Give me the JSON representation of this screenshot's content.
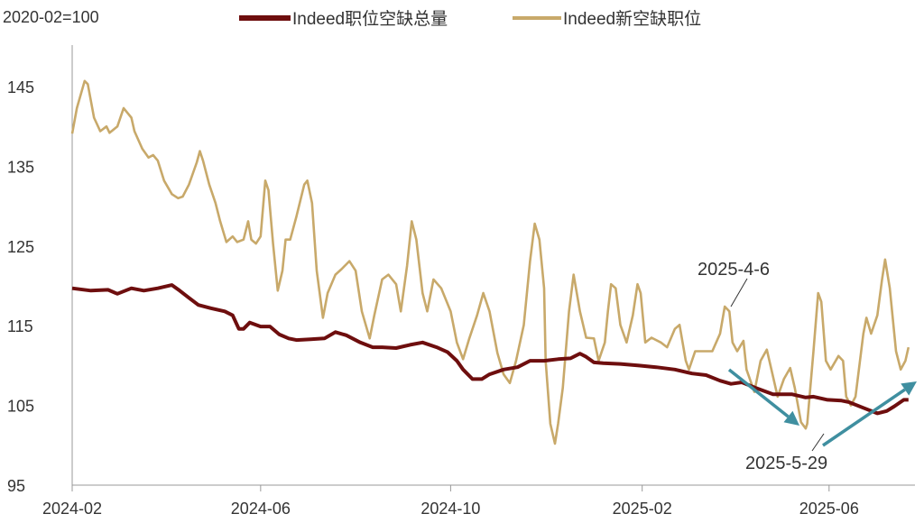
{
  "chart_data": {
    "type": "line",
    "unit_label": "2020-02=100",
    "ylim": [
      95,
      150
    ],
    "yticks": [
      95,
      105,
      115,
      125,
      135,
      145
    ],
    "xlim": [
      "2024-02-01",
      "2025-07-25"
    ],
    "xticks": [
      "2024-02",
      "2024-06",
      "2024-10",
      "2025-02",
      "2025-06"
    ],
    "grid": false,
    "legend": "top",
    "series": [
      {
        "name": "Indeed职位空缺总量",
        "color": "#6e0e0e",
        "points": [
          [
            "2024-02-01",
            119.7
          ],
          [
            "2024-02-13",
            119.4
          ],
          [
            "2024-02-24",
            119.5
          ],
          [
            "2024-03-01",
            119.0
          ],
          [
            "2024-03-10",
            119.7
          ],
          [
            "2024-03-18",
            119.4
          ],
          [
            "2024-03-27",
            119.7
          ],
          [
            "2024-04-05",
            120.1
          ],
          [
            "2024-04-10",
            119.4
          ],
          [
            "2024-04-16",
            118.5
          ],
          [
            "2024-04-22",
            117.6
          ],
          [
            "2024-04-30",
            117.2
          ],
          [
            "2024-05-09",
            116.8
          ],
          [
            "2024-05-14",
            116.3
          ],
          [
            "2024-05-18",
            114.6
          ],
          [
            "2024-05-21",
            114.6
          ],
          [
            "2024-05-25",
            115.4
          ],
          [
            "2024-06-01",
            114.9
          ],
          [
            "2024-06-07",
            114.9
          ],
          [
            "2024-06-13",
            113.9
          ],
          [
            "2024-06-19",
            113.4
          ],
          [
            "2024-06-24",
            113.2
          ],
          [
            "2024-07-03",
            113.3
          ],
          [
            "2024-07-12",
            113.4
          ],
          [
            "2024-07-19",
            114.2
          ],
          [
            "2024-07-26",
            113.8
          ],
          [
            "2024-08-04",
            112.9
          ],
          [
            "2024-08-12",
            112.3
          ],
          [
            "2024-08-18",
            112.3
          ],
          [
            "2024-08-27",
            112.2
          ],
          [
            "2024-09-05",
            112.6
          ],
          [
            "2024-09-13",
            112.9
          ],
          [
            "2024-09-22",
            112.3
          ],
          [
            "2024-09-29",
            111.7
          ],
          [
            "2024-10-05",
            110.6
          ],
          [
            "2024-10-09",
            109.5
          ],
          [
            "2024-10-15",
            108.3
          ],
          [
            "2024-10-21",
            108.3
          ],
          [
            "2024-10-26",
            108.9
          ],
          [
            "2024-11-04",
            109.5
          ],
          [
            "2024-11-13",
            109.8
          ],
          [
            "2024-11-21",
            110.6
          ],
          [
            "2024-11-30",
            110.6
          ],
          [
            "2024-12-09",
            110.8
          ],
          [
            "2024-12-17",
            110.9
          ],
          [
            "2024-12-23",
            111.5
          ],
          [
            "2024-12-27",
            111.1
          ],
          [
            "2025-01-01",
            110.4
          ],
          [
            "2025-01-07",
            110.3
          ],
          [
            "2025-01-18",
            110.2
          ],
          [
            "2025-01-30",
            110.0
          ],
          [
            "2025-02-10",
            109.8
          ],
          [
            "2025-02-22",
            109.5
          ],
          [
            "2025-03-05",
            109.0
          ],
          [
            "2025-03-14",
            108.8
          ],
          [
            "2025-03-23",
            108.1
          ],
          [
            "2025-03-30",
            107.7
          ],
          [
            "2025-04-06",
            107.9
          ],
          [
            "2025-04-15",
            107.2
          ],
          [
            "2025-04-26",
            106.4
          ],
          [
            "2025-05-08",
            106.4
          ],
          [
            "2025-05-17",
            106.0
          ],
          [
            "2025-05-22",
            106.1
          ],
          [
            "2025-05-31",
            105.7
          ],
          [
            "2025-06-09",
            105.6
          ],
          [
            "2025-06-14",
            105.4
          ],
          [
            "2025-06-23",
            104.7
          ],
          [
            "2025-07-02",
            104.0
          ],
          [
            "2025-07-08",
            104.3
          ],
          [
            "2025-07-13",
            104.9
          ],
          [
            "2025-07-19",
            105.7
          ],
          [
            "2025-07-22",
            105.7
          ]
        ]
      },
      {
        "name": "Indeed新空缺职位",
        "color": "#c8a96a",
        "points": [
          [
            "2024-02-01",
            139.1
          ],
          [
            "2024-02-04",
            142.3
          ],
          [
            "2024-02-09",
            145.7
          ],
          [
            "2024-02-11",
            145.3
          ],
          [
            "2024-02-15",
            141.1
          ],
          [
            "2024-02-19",
            139.4
          ],
          [
            "2024-02-23",
            140.0
          ],
          [
            "2024-02-25",
            139.2
          ],
          [
            "2024-03-01",
            140.0
          ],
          [
            "2024-03-05",
            142.3
          ],
          [
            "2024-03-10",
            141.1
          ],
          [
            "2024-03-12",
            139.4
          ],
          [
            "2024-03-17",
            137.2
          ],
          [
            "2024-03-21",
            136.1
          ],
          [
            "2024-03-24",
            136.4
          ],
          [
            "2024-03-27",
            135.7
          ],
          [
            "2024-03-31",
            133.2
          ],
          [
            "2024-04-05",
            131.5
          ],
          [
            "2024-04-09",
            131.0
          ],
          [
            "2024-04-12",
            131.2
          ],
          [
            "2024-04-16",
            132.7
          ],
          [
            "2024-04-21",
            135.5
          ],
          [
            "2024-04-23",
            136.9
          ],
          [
            "2024-04-25",
            135.7
          ],
          [
            "2024-04-29",
            132.7
          ],
          [
            "2024-05-03",
            130.4
          ],
          [
            "2024-05-06",
            128.1
          ],
          [
            "2024-05-10",
            125.5
          ],
          [
            "2024-05-14",
            126.2
          ],
          [
            "2024-05-17",
            125.5
          ],
          [
            "2024-05-21",
            125.8
          ],
          [
            "2024-05-24",
            128.1
          ],
          [
            "2024-05-26",
            125.8
          ],
          [
            "2024-05-29",
            125.3
          ],
          [
            "2024-06-01",
            126.2
          ],
          [
            "2024-06-04",
            133.2
          ],
          [
            "2024-06-06",
            132.0
          ],
          [
            "2024-06-09",
            125.3
          ],
          [
            "2024-06-12",
            119.4
          ],
          [
            "2024-06-15",
            121.9
          ],
          [
            "2024-06-17",
            125.8
          ],
          [
            "2024-06-20",
            125.8
          ],
          [
            "2024-06-24",
            128.7
          ],
          [
            "2024-06-29",
            132.7
          ],
          [
            "2024-07-01",
            133.2
          ],
          [
            "2024-07-04",
            130.4
          ],
          [
            "2024-07-07",
            121.9
          ],
          [
            "2024-07-11",
            116.0
          ],
          [
            "2024-07-14",
            119.1
          ],
          [
            "2024-07-19",
            121.4
          ],
          [
            "2024-07-23",
            122.1
          ],
          [
            "2024-07-28",
            123.1
          ],
          [
            "2024-08-01",
            121.9
          ],
          [
            "2024-08-05",
            116.8
          ],
          [
            "2024-08-10",
            113.4
          ],
          [
            "2024-08-13",
            116.3
          ],
          [
            "2024-08-18",
            120.8
          ],
          [
            "2024-08-22",
            121.4
          ],
          [
            "2024-08-27",
            120.2
          ],
          [
            "2024-08-30",
            116.8
          ],
          [
            "2024-09-03",
            122.5
          ],
          [
            "2024-09-06",
            128.1
          ],
          [
            "2024-09-09",
            125.8
          ],
          [
            "2024-09-13",
            119.1
          ],
          [
            "2024-09-16",
            116.8
          ],
          [
            "2024-09-20",
            120.8
          ],
          [
            "2024-09-25",
            119.7
          ],
          [
            "2024-10-01",
            116.8
          ],
          [
            "2024-10-05",
            112.9
          ],
          [
            "2024-10-09",
            110.8
          ],
          [
            "2024-10-13",
            113.4
          ],
          [
            "2024-10-18",
            116.3
          ],
          [
            "2024-10-22",
            119.1
          ],
          [
            "2024-10-26",
            116.8
          ],
          [
            "2024-10-31",
            111.6
          ],
          [
            "2024-11-04",
            108.9
          ],
          [
            "2024-11-08",
            107.8
          ],
          [
            "2024-11-12",
            110.6
          ],
          [
            "2024-11-17",
            115.1
          ],
          [
            "2024-11-21",
            123.1
          ],
          [
            "2024-11-24",
            127.8
          ],
          [
            "2024-11-27",
            125.8
          ],
          [
            "2024-11-30",
            119.7
          ],
          [
            "2024-12-01",
            110.6
          ],
          [
            "2024-12-04",
            102.7
          ],
          [
            "2024-12-07",
            100.2
          ],
          [
            "2024-12-09",
            102.7
          ],
          [
            "2024-12-12",
            107.2
          ],
          [
            "2024-12-16",
            116.8
          ],
          [
            "2024-12-19",
            121.4
          ],
          [
            "2024-12-23",
            116.8
          ],
          [
            "2024-12-27",
            113.5
          ],
          [
            "2025-01-01",
            113.4
          ],
          [
            "2025-01-04",
            110.6
          ],
          [
            "2025-01-08",
            112.9
          ],
          [
            "2025-01-10",
            116.8
          ],
          [
            "2025-01-12",
            120.2
          ],
          [
            "2025-01-15",
            119.7
          ],
          [
            "2025-01-18",
            115.1
          ],
          [
            "2025-01-22",
            112.9
          ],
          [
            "2025-01-26",
            116.3
          ],
          [
            "2025-01-29",
            120.2
          ],
          [
            "2025-01-31",
            119.1
          ],
          [
            "2025-02-03",
            112.9
          ],
          [
            "2025-02-07",
            113.5
          ],
          [
            "2025-02-13",
            112.9
          ],
          [
            "2025-02-17",
            112.3
          ],
          [
            "2025-02-22",
            114.6
          ],
          [
            "2025-02-25",
            115.1
          ],
          [
            "2025-03-01",
            110.6
          ],
          [
            "2025-03-03",
            109.5
          ],
          [
            "2025-03-07",
            111.8
          ],
          [
            "2025-03-10",
            111.8
          ],
          [
            "2025-03-15",
            111.8
          ],
          [
            "2025-03-18",
            111.8
          ],
          [
            "2025-03-23",
            114.0
          ],
          [
            "2025-03-26",
            117.4
          ],
          [
            "2025-03-29",
            116.8
          ],
          [
            "2025-03-31",
            112.9
          ],
          [
            "2025-04-03",
            111.8
          ],
          [
            "2025-04-07",
            113.1
          ],
          [
            "2025-04-09",
            109.5
          ],
          [
            "2025-04-14",
            106.7
          ],
          [
            "2025-04-18",
            110.6
          ],
          [
            "2025-04-22",
            112.0
          ],
          [
            "2025-04-25",
            109.5
          ],
          [
            "2025-04-29",
            106.1
          ],
          [
            "2025-05-03",
            108.3
          ],
          [
            "2025-05-07",
            109.7
          ],
          [
            "2025-05-10",
            107.2
          ],
          [
            "2025-05-14",
            102.9
          ],
          [
            "2025-05-17",
            102.1
          ],
          [
            "2025-05-18",
            102.7
          ],
          [
            "2025-05-22",
            111.8
          ],
          [
            "2025-05-25",
            119.1
          ],
          [
            "2025-05-27",
            118.0
          ],
          [
            "2025-05-30",
            110.6
          ],
          [
            "2025-06-02",
            109.5
          ],
          [
            "2025-06-07",
            111.2
          ],
          [
            "2025-06-10",
            110.6
          ],
          [
            "2025-06-12",
            106.1
          ],
          [
            "2025-06-15",
            105.0
          ],
          [
            "2025-06-18",
            106.1
          ],
          [
            "2025-06-23",
            114.0
          ],
          [
            "2025-06-25",
            116.0
          ],
          [
            "2025-06-28",
            114.0
          ],
          [
            "2025-07-02",
            116.3
          ],
          [
            "2025-07-05",
            120.8
          ],
          [
            "2025-07-07",
            123.3
          ],
          [
            "2025-07-10",
            119.7
          ],
          [
            "2025-07-14",
            111.8
          ],
          [
            "2025-07-17",
            109.5
          ],
          [
            "2025-07-20",
            110.6
          ],
          [
            "2025-07-22",
            112.3
          ]
        ]
      }
    ],
    "annotations": [
      {
        "text": "2025-4-6"
      },
      {
        "text": "2025-5-29"
      }
    ],
    "arrow_color": "#3f8fa0"
  }
}
